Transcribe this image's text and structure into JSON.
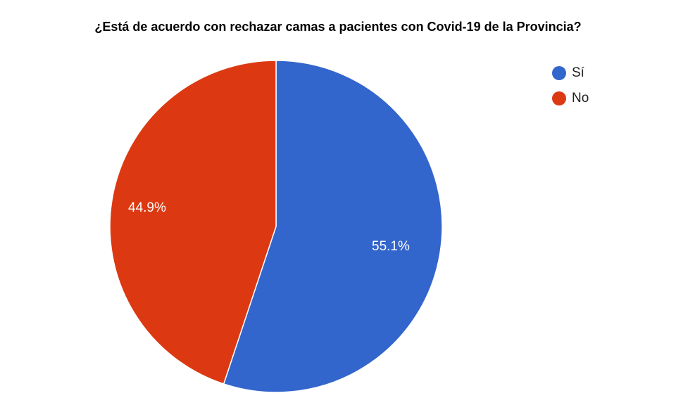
{
  "title": "¿Está de acuerdo con rechazar camas a pacientes con Covid-19 de la Provincia?",
  "legend": [
    {
      "label": "Sí",
      "color": "#3366CC"
    },
    {
      "label": "No",
      "color": "#DC3912"
    }
  ],
  "slice_labels": {
    "si": "55.1%",
    "no": "44.9%"
  },
  "chart_data": {
    "type": "pie",
    "title": "¿Está de acuerdo con rechazar camas a pacientes con Covid-19 de la Provincia?",
    "categories": [
      "Sí",
      "No"
    ],
    "values": [
      55.1,
      44.9
    ],
    "colors": [
      "#3366CC",
      "#DC3912"
    ],
    "legend_position": "right",
    "start_angle": "12 o'clock, clockwise"
  }
}
